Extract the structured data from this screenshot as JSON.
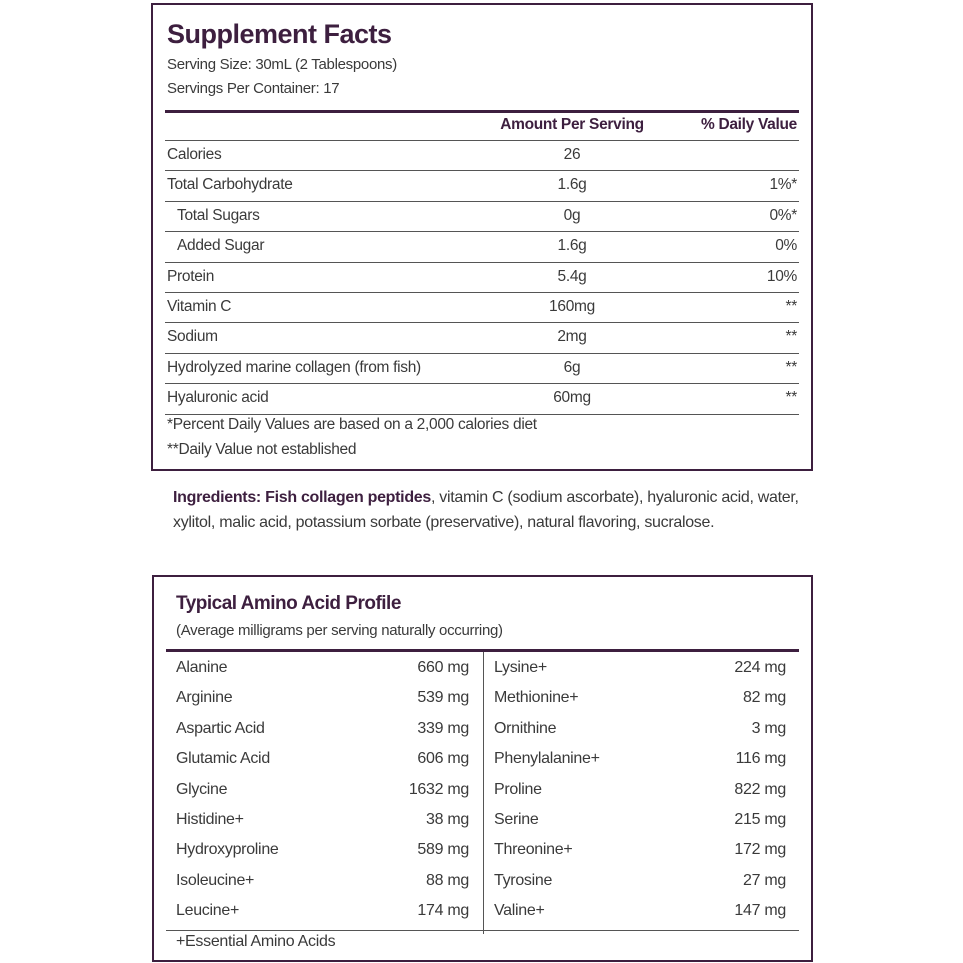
{
  "facts": {
    "title": "Supplement Facts",
    "serving_size": "Serving Size: 30mL (2 Tablespoons)",
    "servings_per_container": "Servings Per Container: 17",
    "col_amount": "Amount Per Serving",
    "col_dv": "% Daily Value",
    "rows": [
      {
        "name": "Calories",
        "amount": "26",
        "dv": ""
      },
      {
        "name": "Total Carbohydrate",
        "amount": "1.6g",
        "dv": "1%*"
      },
      {
        "name": "Total Sugars",
        "amount": "0g",
        "dv": "0%*",
        "indent": true
      },
      {
        "name": "Added Sugar",
        "amount": "1.6g",
        "dv": "0%",
        "indent": true
      },
      {
        "name": "Protein",
        "amount": "5.4g",
        "dv": "10%"
      },
      {
        "name": "Vitamin C",
        "amount": "160mg",
        "dv": "**"
      },
      {
        "name": "Sodium",
        "amount": "2mg",
        "dv": "**"
      },
      {
        "name": "Hydrolyzed marine collagen (from fish)",
        "amount": "6g",
        "dv": "**"
      },
      {
        "name": "Hyaluronic acid",
        "amount": "60mg",
        "dv": "**"
      }
    ],
    "footnote1": "*Percent Daily Values are based on a 2,000 calories diet",
    "footnote2": "**Daily Value not established"
  },
  "ingredients": {
    "label": "Ingredients: Fish collagen peptides",
    "text": ", vitamin C (sodium ascorbate), hyaluronic acid, water, xylitol, malic acid, potassium sorbate (preservative), natural flavoring, sucralose."
  },
  "amino": {
    "title": "Typical Amino Acid Profile",
    "subtitle": "(Average milligrams per serving naturally occurring)",
    "left": [
      {
        "name": "Alanine",
        "value": "660 mg"
      },
      {
        "name": "Arginine",
        "value": "539 mg"
      },
      {
        "name": "Aspartic Acid",
        "value": "339 mg"
      },
      {
        "name": "Glutamic Acid",
        "value": "606 mg"
      },
      {
        "name": "Glycine",
        "value": "1632 mg"
      },
      {
        "name": "Histidine+",
        "value": "38 mg"
      },
      {
        "name": "Hydroxyproline",
        "value": "589 mg"
      },
      {
        "name": "Isoleucine+",
        "value": "88 mg"
      },
      {
        "name": "Leucine+",
        "value": "174 mg"
      }
    ],
    "right": [
      {
        "name": "Lysine+",
        "value": "224 mg"
      },
      {
        "name": "Methionine+",
        "value": "82 mg"
      },
      {
        "name": "Ornithine",
        "value": "3 mg"
      },
      {
        "name": "Phenylalanine+",
        "value": "116 mg"
      },
      {
        "name": "Proline",
        "value": "822 mg"
      },
      {
        "name": "Serine",
        "value": "215 mg"
      },
      {
        "name": "Threonine+",
        "value": "172 mg"
      },
      {
        "name": "Tyrosine",
        "value": "27 mg"
      },
      {
        "name": "Valine+",
        "value": "147 mg"
      }
    ],
    "footnote": "+Essential Amino Acids"
  },
  "colors": {
    "brand": "#3d1f3f",
    "text": "#3a3a3a"
  }
}
